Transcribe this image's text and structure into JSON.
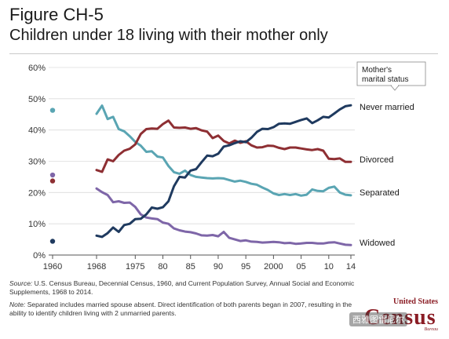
{
  "figure": {
    "label": "Figure CH-5",
    "title": "Children under 18 living with their mother only"
  },
  "legend_box": "Mother's marital status",
  "footnotes": {
    "source_label": "Source:",
    "source_text": " U.S. Census Bureau, Decennial Census, 1960, and Current Population Survey, Annual Social and Economic Supplements, 1968 to 2014.",
    "note_label": "Note:",
    "note_text": " Separated includes married spouse absent. Direct identification of both parents began in 2007, resulting in the ability to identify children living with 2 unmarried parents."
  },
  "logo": {
    "top": "United States",
    "main": "Census",
    "sub": "Bureau",
    "watermark": "西雅图雷尼尔"
  },
  "chart_data": {
    "type": "line",
    "ylim": [
      0,
      60
    ],
    "yticks": [
      0,
      10,
      20,
      30,
      40,
      50,
      60
    ],
    "ytick_labels": [
      "0%",
      "10%",
      "20%",
      "30%",
      "40%",
      "50%",
      "60%"
    ],
    "xticks": [
      1960,
      1968,
      1975,
      1980,
      1985,
      1990,
      1995,
      2000,
      2005,
      2010,
      2014
    ],
    "xtick_labels": [
      "1960",
      "1968",
      "1975",
      "80",
      "85",
      "90",
      "95",
      "2000",
      "05",
      "10",
      "14"
    ],
    "grid": true,
    "series": [
      {
        "name": "Never married",
        "color": "#1f3a5f",
        "point_1960": 4.4,
        "x": [
          1968,
          1969,
          1970,
          1971,
          1972,
          1973,
          1974,
          1975,
          1976,
          1977,
          1978,
          1979,
          1980,
          1981,
          1982,
          1983,
          1984,
          1985,
          1986,
          1987,
          1988,
          1989,
          1990,
          1991,
          1992,
          1993,
          1994,
          1995,
          1996,
          1997,
          1998,
          1999,
          2000,
          2001,
          2002,
          2003,
          2004,
          2005,
          2006,
          2007,
          2008,
          2009,
          2010,
          2011,
          2012,
          2013,
          2014
        ],
        "y": [
          6.2,
          5.8,
          7.0,
          8.8,
          7.4,
          9.6,
          10.0,
          11.5,
          11.6,
          13.0,
          15.2,
          14.8,
          15.3,
          17.2,
          22.0,
          25.0,
          24.8,
          27.0,
          27.5,
          29.7,
          31.8,
          31.6,
          32.4,
          34.7,
          35.1,
          35.8,
          36.4,
          36.1,
          37.5,
          39.4,
          40.4,
          40.3,
          40.9,
          42.0,
          42.1,
          42.0,
          42.6,
          43.2,
          43.7,
          42.2,
          43.1,
          44.2,
          44.0,
          45.3,
          46.6,
          47.6,
          47.9
        ]
      },
      {
        "name": "Divorced",
        "color": "#8e2f33",
        "point_1960": 23.7,
        "x": [
          1968,
          1969,
          1970,
          1971,
          1972,
          1973,
          1974,
          1975,
          1976,
          1977,
          1978,
          1979,
          1980,
          1981,
          1982,
          1983,
          1984,
          1985,
          1986,
          1987,
          1988,
          1989,
          1990,
          1991,
          1992,
          1993,
          1994,
          1995,
          1996,
          1997,
          1998,
          1999,
          2000,
          2001,
          2002,
          2003,
          2004,
          2005,
          2006,
          2007,
          2008,
          2009,
          2010,
          2011,
          2012,
          2013,
          2014
        ],
        "y": [
          27.2,
          26.6,
          30.6,
          30.0,
          32.0,
          33.4,
          34.0,
          35.4,
          38.7,
          40.3,
          40.5,
          40.4,
          41.9,
          43.0,
          40.8,
          40.7,
          40.8,
          40.4,
          40.6,
          39.9,
          39.5,
          37.4,
          38.2,
          36.5,
          35.7,
          36.6,
          35.9,
          36.4,
          35.1,
          34.4,
          34.5,
          35.0,
          34.9,
          34.3,
          33.9,
          34.4,
          34.4,
          34.1,
          33.8,
          33.6,
          33.9,
          33.4,
          30.8,
          30.7,
          30.9,
          29.8,
          29.8
        ]
      },
      {
        "name": "Separated",
        "color": "#5aa5b3",
        "point_1960": 46.3,
        "x": [
          1968,
          1969,
          1970,
          1971,
          1972,
          1973,
          1974,
          1975,
          1976,
          1977,
          1978,
          1979,
          1980,
          1981,
          1982,
          1983,
          1984,
          1985,
          1986,
          1987,
          1988,
          1989,
          1990,
          1991,
          1992,
          1993,
          1994,
          1995,
          1996,
          1997,
          1998,
          1999,
          2000,
          2001,
          2002,
          2003,
          2004,
          2005,
          2006,
          2007,
          2008,
          2009,
          2010,
          2011,
          2012,
          2013,
          2014
        ],
        "y": [
          45.2,
          47.8,
          43.5,
          44.2,
          40.3,
          39.6,
          38.0,
          36.2,
          35.0,
          33.0,
          33.2,
          31.5,
          31.2,
          28.5,
          26.5,
          26.0,
          27.0,
          25.6,
          25.0,
          24.8,
          24.6,
          24.5,
          24.6,
          24.5,
          24.0,
          23.5,
          23.8,
          23.4,
          22.8,
          22.5,
          21.6,
          20.8,
          19.7,
          19.2,
          19.5,
          19.2,
          19.5,
          19.0,
          19.3,
          21.0,
          20.5,
          20.4,
          21.5,
          21.9,
          20.0,
          19.3,
          19.1
        ]
      },
      {
        "name": "Widowed",
        "color": "#7e66a8",
        "point_1960": 25.6,
        "x": [
          1968,
          1969,
          1970,
          1971,
          1972,
          1973,
          1974,
          1975,
          1976,
          1977,
          1978,
          1979,
          1980,
          1981,
          1982,
          1983,
          1984,
          1985,
          1986,
          1987,
          1988,
          1989,
          1990,
          1991,
          1992,
          1993,
          1994,
          1995,
          1996,
          1997,
          1998,
          1999,
          2000,
          2001,
          2002,
          2003,
          2004,
          2005,
          2006,
          2007,
          2008,
          2009,
          2010,
          2011,
          2012,
          2013,
          2014
        ],
        "y": [
          21.3,
          20.1,
          19.2,
          16.9,
          17.2,
          16.7,
          16.8,
          15.4,
          13.0,
          12.0,
          11.7,
          11.5,
          10.4,
          10.0,
          8.5,
          7.9,
          7.5,
          7.3,
          6.9,
          6.3,
          6.2,
          6.4,
          6.0,
          7.4,
          5.5,
          5.0,
          4.5,
          4.7,
          4.3,
          4.2,
          4.0,
          4.1,
          4.2,
          4.1,
          3.8,
          3.9,
          3.6,
          3.7,
          3.9,
          3.9,
          3.7,
          3.7,
          4.0,
          4.1,
          3.7,
          3.3,
          3.2
        ]
      }
    ]
  }
}
